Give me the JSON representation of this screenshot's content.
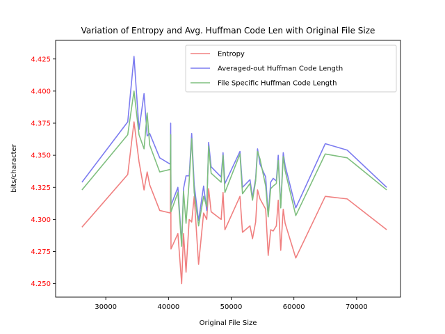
{
  "chart_data": {
    "type": "line",
    "title": "Variation of Entropy and Avg. Huffman Code Len with Original File Size",
    "xlabel": "Original File Size",
    "ylabel": "bits/character",
    "xlim": [
      22000,
      77000
    ],
    "ylim": [
      4.2395,
      4.4395
    ],
    "xticks": [
      30000,
      40000,
      50000,
      60000,
      70000
    ],
    "yticks": [
      4.25,
      4.275,
      4.3,
      4.325,
      4.35,
      4.375,
      4.4,
      4.425
    ],
    "ytick_color": "#ff0000",
    "grid": false,
    "legend_position": "upper-center",
    "x": [
      26200,
      33500,
      34500,
      35300,
      36100,
      36600,
      37000,
      38600,
      40300,
      40350,
      40400,
      41500,
      42100,
      42400,
      42800,
      43300,
      43700,
      44100,
      44800,
      45600,
      46100,
      46400,
      46800,
      48400,
      48700,
      49000,
      51400,
      51800,
      53000,
      53400,
      53900,
      54200,
      54600,
      55500,
      55900,
      56300,
      56700,
      57200,
      57500,
      57900,
      58300,
      58600,
      60300,
      65000,
      68500,
      74800
    ],
    "series": [
      {
        "name": "Entropy",
        "color": "#f08080",
        "values": [
          4.294,
          4.335,
          4.376,
          4.345,
          4.323,
          4.337,
          4.327,
          4.307,
          4.305,
          4.366,
          4.277,
          4.289,
          4.25,
          4.289,
          4.259,
          4.3,
          4.298,
          4.318,
          4.265,
          4.305,
          4.3,
          4.324,
          4.306,
          4.3,
          4.321,
          4.292,
          4.318,
          4.29,
          4.295,
          4.285,
          4.298,
          4.323,
          4.316,
          4.308,
          4.272,
          4.292,
          4.291,
          4.295,
          4.315,
          4.276,
          4.308,
          4.297,
          4.27,
          4.318,
          4.316,
          4.292
        ]
      },
      {
        "name": "Averaged-out Huffman Code Length",
        "color": "#7b7bf0",
        "values": [
          4.329,
          4.376,
          4.427,
          4.37,
          4.398,
          4.365,
          4.367,
          4.348,
          4.343,
          4.375,
          4.311,
          4.325,
          4.281,
          4.324,
          4.334,
          4.334,
          4.367,
          4.327,
          4.299,
          4.326,
          4.307,
          4.36,
          4.341,
          4.333,
          4.352,
          4.328,
          4.353,
          4.325,
          4.331,
          4.317,
          4.332,
          4.355,
          4.343,
          4.333,
          4.303,
          4.329,
          4.332,
          4.33,
          4.35,
          4.31,
          4.352,
          4.342,
          4.309,
          4.359,
          4.354,
          4.325
        ]
      },
      {
        "name": "File Specific Huffman Code Length",
        "color": "#7fbf7f",
        "values": [
          4.323,
          4.366,
          4.4,
          4.366,
          4.355,
          4.383,
          4.358,
          4.337,
          4.339,
          4.366,
          4.306,
          4.321,
          4.279,
          4.322,
          4.297,
          4.33,
          4.363,
          4.321,
          4.295,
          4.318,
          4.31,
          4.357,
          4.336,
          4.329,
          4.35,
          4.321,
          4.351,
          4.32,
          4.328,
          4.315,
          4.33,
          4.353,
          4.347,
          4.326,
          4.302,
          4.324,
          4.326,
          4.328,
          4.346,
          4.309,
          4.349,
          4.338,
          4.303,
          4.351,
          4.348,
          4.323
        ]
      }
    ]
  }
}
